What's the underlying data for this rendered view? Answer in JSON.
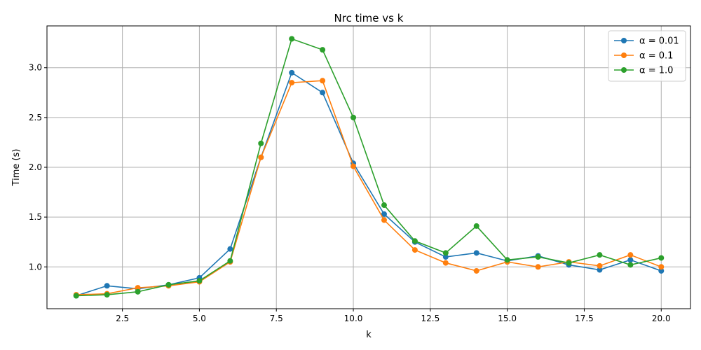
{
  "chart_data": {
    "type": "line",
    "title": "Nrc time vs k",
    "xlabel": "k",
    "ylabel": "Time (s)",
    "xlim": [
      0.05,
      20.95
    ],
    "ylim": [
      0.58,
      3.42
    ],
    "xticks": [
      2.5,
      5.0,
      7.5,
      10.0,
      12.5,
      15.0,
      17.5,
      20.0
    ],
    "xtick_labels": [
      "2.5",
      "5.0",
      "7.5",
      "10.0",
      "12.5",
      "15.0",
      "17.5",
      "20.0"
    ],
    "yticks": [
      1.0,
      1.5,
      2.0,
      2.5,
      3.0
    ],
    "ytick_labels": [
      "1.0",
      "1.5",
      "2.0",
      "2.5",
      "3.0"
    ],
    "grid": true,
    "legend_position": "top-right",
    "x": [
      1,
      2,
      3,
      4,
      5,
      6,
      7,
      8,
      9,
      10,
      11,
      12,
      13,
      14,
      15,
      16,
      17,
      18,
      19,
      20
    ],
    "series": [
      {
        "name": "α = 0.01",
        "color": "#1f77b4",
        "values": [
          0.71,
          0.81,
          0.78,
          0.82,
          0.89,
          1.18,
          2.1,
          2.95,
          2.75,
          2.04,
          1.53,
          1.25,
          1.1,
          1.14,
          1.06,
          1.11,
          1.02,
          0.97,
          1.07,
          0.96
        ]
      },
      {
        "name": "α = 0.1",
        "color": "#ff7f0e",
        "values": [
          0.72,
          0.73,
          0.79,
          0.81,
          0.85,
          1.05,
          2.1,
          2.85,
          2.87,
          2.01,
          1.47,
          1.17,
          1.04,
          0.96,
          1.05,
          1.0,
          1.05,
          1.01,
          1.12,
          1.0
        ]
      },
      {
        "name": "α = 1.0",
        "color": "#2ca02c",
        "values": [
          0.71,
          0.72,
          0.75,
          0.82,
          0.86,
          1.06,
          2.24,
          3.29,
          3.18,
          2.5,
          1.62,
          1.26,
          1.14,
          1.41,
          1.07,
          1.1,
          1.04,
          1.12,
          1.02,
          1.09
        ]
      }
    ]
  }
}
